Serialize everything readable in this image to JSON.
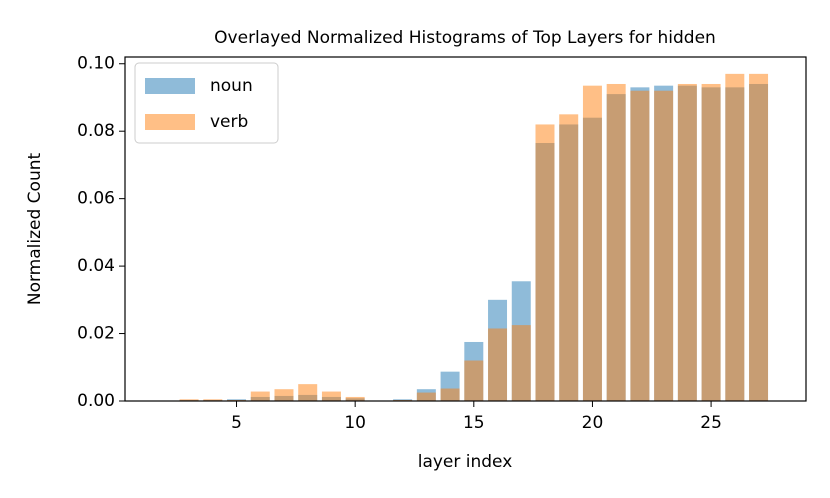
{
  "chart_data": {
    "type": "bar",
    "title": "Overlayed Normalized Histograms of Top Layers for hidden",
    "x_label": "layer index",
    "y_label": "Normalized Count",
    "x": [
      3,
      4,
      5,
      6,
      7,
      8,
      9,
      10,
      11,
      12,
      13,
      14,
      15,
      16,
      17,
      18,
      19,
      20,
      21,
      22,
      23,
      24,
      25,
      26,
      27
    ],
    "series": [
      {
        "name": "noun",
        "color": "#1f77b4",
        "values": [
          0.0003,
          0.0003,
          0.0005,
          0.0012,
          0.0015,
          0.0018,
          0.0012,
          0.0008,
          0,
          0.0005,
          0.0035,
          0.0087,
          0.0175,
          0.03,
          0.0355,
          0.0765,
          0.082,
          0.084,
          0.091,
          0.093,
          0.0935,
          0.0935,
          0.093,
          0.093,
          0.094
        ]
      },
      {
        "name": "verb",
        "color": "#ff7f0e",
        "values": [
          0.0005,
          0.0005,
          0.0003,
          0.0028,
          0.0035,
          0.005,
          0.0028,
          0.0012,
          0,
          0.0003,
          0.0025,
          0.0037,
          0.012,
          0.0215,
          0.0225,
          0.082,
          0.085,
          0.0935,
          0.094,
          0.092,
          0.092,
          0.094,
          0.094,
          0.097,
          0.097
        ]
      }
    ],
    "xlim": [
      0.3,
      29.0
    ],
    "ylim": [
      0,
      0.102
    ],
    "xticks": [
      5,
      10,
      15,
      20,
      25
    ],
    "yticks": [
      {
        "value": 0,
        "label": "0.00"
      },
      {
        "value": 0.02,
        "label": "0.02"
      },
      {
        "value": 0.04,
        "label": "0.04"
      },
      {
        "value": 0.06,
        "label": "0.06"
      },
      {
        "value": 0.08,
        "label": "0.08"
      },
      {
        "value": 0.1,
        "label": "0.10"
      }
    ],
    "legend": "upper left",
    "opacity": 0.5
  }
}
